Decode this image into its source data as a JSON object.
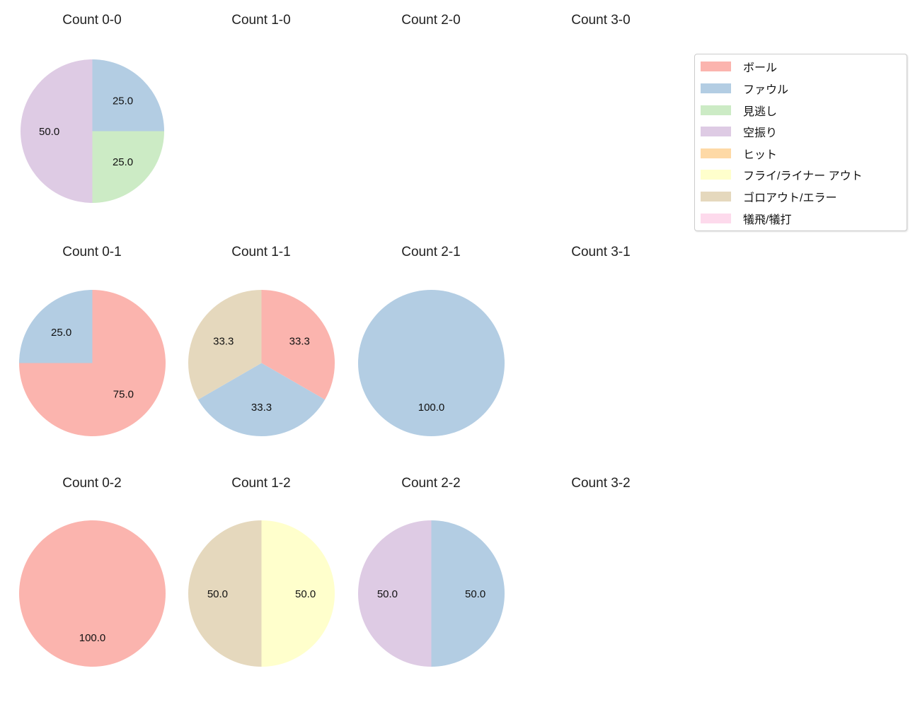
{
  "figure": {
    "background_color": "#ffffff",
    "text_color": "#111111"
  },
  "legend": {
    "items": [
      {
        "label": "ボール",
        "color": "#fbb4ae"
      },
      {
        "label": "ファウル",
        "color": "#b3cde3"
      },
      {
        "label": "見逃し",
        "color": "#ccebc5"
      },
      {
        "label": "空振り",
        "color": "#decbe4"
      },
      {
        "label": "ヒット",
        "color": "#fed9a6"
      },
      {
        "label": "フライ/ライナー アウト",
        "color": "#ffffcc"
      },
      {
        "label": "ゴロアウト/エラー",
        "color": "#e5d8bd"
      },
      {
        "label": "犠飛/犠打",
        "color": "#fddaec"
      }
    ]
  },
  "chart_data": [
    {
      "type": "pie",
      "title": "Count 0-0",
      "start_angle_deg": 90,
      "direction": "clockwise",
      "pct_distance": 0.6,
      "slices": [
        {
          "label": "ファウル",
          "value": 25.0,
          "display": "25.0",
          "color": "#b3cde3"
        },
        {
          "label": "見逃し",
          "value": 25.0,
          "display": "25.0",
          "color": "#ccebc5"
        },
        {
          "label": "空振り",
          "value": 50.0,
          "display": "50.0",
          "color": "#decbe4"
        }
      ]
    },
    {
      "type": "pie",
      "title": "Count 1-0",
      "slices": []
    },
    {
      "type": "pie",
      "title": "Count 2-0",
      "slices": []
    },
    {
      "type": "pie",
      "title": "Count 3-0",
      "slices": []
    },
    {
      "type": "pie",
      "title": "Count 0-1",
      "start_angle_deg": 90,
      "direction": "clockwise",
      "pct_distance": 0.6,
      "slices": [
        {
          "label": "ボール",
          "value": 75.0,
          "display": "75.0",
          "color": "#fbb4ae"
        },
        {
          "label": "ファウル",
          "value": 25.0,
          "display": "25.0",
          "color": "#b3cde3"
        }
      ]
    },
    {
      "type": "pie",
      "title": "Count 1-1",
      "start_angle_deg": 90,
      "direction": "clockwise",
      "pct_distance": 0.6,
      "slices": [
        {
          "label": "ボール",
          "value": 33.3,
          "display": "33.3",
          "color": "#fbb4ae"
        },
        {
          "label": "ファウル",
          "value": 33.3,
          "display": "33.3",
          "color": "#b3cde3"
        },
        {
          "label": "ゴロアウト/エラー",
          "value": 33.3,
          "display": "33.3",
          "color": "#e5d8bd"
        }
      ]
    },
    {
      "type": "pie",
      "title": "Count 2-1",
      "start_angle_deg": 90,
      "direction": "clockwise",
      "pct_distance": 0.6,
      "slices": [
        {
          "label": "ファウル",
          "value": 100.0,
          "display": "100.0",
          "color": "#b3cde3"
        }
      ]
    },
    {
      "type": "pie",
      "title": "Count 3-1",
      "slices": []
    },
    {
      "type": "pie",
      "title": "Count 0-2",
      "start_angle_deg": 90,
      "direction": "clockwise",
      "pct_distance": 0.6,
      "slices": [
        {
          "label": "ボール",
          "value": 100.0,
          "display": "100.0",
          "color": "#fbb4ae"
        }
      ]
    },
    {
      "type": "pie",
      "title": "Count 1-2",
      "start_angle_deg": 90,
      "direction": "clockwise",
      "pct_distance": 0.6,
      "slices": [
        {
          "label": "フライ/ライナー アウト",
          "value": 50.0,
          "display": "50.0",
          "color": "#ffffcc"
        },
        {
          "label": "ゴロアウト/エラー",
          "value": 50.0,
          "display": "50.0",
          "color": "#e5d8bd"
        }
      ]
    },
    {
      "type": "pie",
      "title": "Count 2-2",
      "start_angle_deg": 90,
      "direction": "clockwise",
      "pct_distance": 0.6,
      "slices": [
        {
          "label": "ファウル",
          "value": 50.0,
          "display": "50.0",
          "color": "#b3cde3"
        },
        {
          "label": "空振り",
          "value": 50.0,
          "display": "50.0",
          "color": "#decbe4"
        }
      ]
    },
    {
      "type": "pie",
      "title": "Count 3-2",
      "slices": []
    }
  ]
}
